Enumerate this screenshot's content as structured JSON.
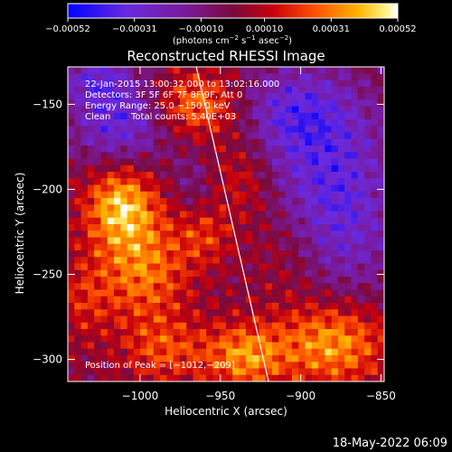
{
  "chart_data": {
    "type": "heatmap",
    "title": "Reconstructed RHESSI Image",
    "xlabel": "Heliocentric X (arcsec)",
    "ylabel": "Heliocentric Y (arcsec)",
    "xlim": [
      -1045,
      -848
    ],
    "ylim": [
      -313,
      -128
    ],
    "x_ticks": [
      {
        "value": -1000,
        "label": "−1000"
      },
      {
        "value": -950,
        "label": "−950"
      },
      {
        "value": -900,
        "label": "−900"
      },
      {
        "value": -850,
        "label": "−850"
      }
    ],
    "y_ticks": [
      {
        "value": -150,
        "label": "−150"
      },
      {
        "value": -200,
        "label": "−200"
      },
      {
        "value": -250,
        "label": "−250"
      },
      {
        "value": -300,
        "label": "−300"
      }
    ],
    "colorbar": {
      "min": -0.00052,
      "max": 0.00052,
      "ticks": [
        {
          "value": -0.00052,
          "label": "−0.00052"
        },
        {
          "value": -0.00031,
          "label": "−0.00031"
        },
        {
          "value": -0.0001,
          "label": "−0.00010"
        },
        {
          "value": 0.0001,
          "label": "0.00010"
        },
        {
          "value": 0.00031,
          "label": "0.00031"
        },
        {
          "value": 0.00052,
          "label": "0.00052"
        }
      ],
      "units_parts": {
        "a": "(photons cm",
        "a_sup": "−2",
        "b": " s",
        "b_sup": "−1",
        "c": " asec",
        "c_sup": "−2",
        "d": ")"
      }
    },
    "annotations": {
      "time_range": "22-Jan-2015 13:00:32.000 to 13:02:16.000",
      "detectors": "Detectors: 3F 5F 6F 7F 8F 9F, Att 0",
      "energy_range": "Energy Range: 25.0 −150.0 keV",
      "method": "Clean",
      "total_counts": "Total counts: 5.40E+03",
      "peak_position": "Position of Peak = [−1012,−209]"
    },
    "limb": [
      [
        -965,
        -128
      ],
      [
        -920,
        -313
      ]
    ],
    "sources": [
      {
        "x": -1012,
        "y": -208,
        "sx": 16,
        "sy": 18,
        "a": 1.2
      },
      {
        "x": -998,
        "y": -248,
        "sx": 20,
        "sy": 22,
        "a": 0.85
      },
      {
        "x": -965,
        "y": -150,
        "sx": 20,
        "sy": 14,
        "a": 0.95
      },
      {
        "x": -880,
        "y": -290,
        "sx": 24,
        "sy": 18,
        "a": 1.1
      },
      {
        "x": -935,
        "y": -298,
        "sx": 18,
        "sy": 14,
        "a": 0.95
      },
      {
        "x": -985,
        "y": -295,
        "sx": 18,
        "sy": 14,
        "a": 0.6
      },
      {
        "x": -905,
        "y": -238,
        "sx": 18,
        "sy": 22,
        "a": 0.45
      },
      {
        "x": -935,
        "y": -192,
        "sx": 14,
        "sy": 20,
        "a": 0.45
      },
      {
        "x": -960,
        "y": -228,
        "sx": 12,
        "sy": 12,
        "a": 0.5
      },
      {
        "x": -1035,
        "y": -265,
        "sx": 12,
        "sy": 18,
        "a": 0.4
      }
    ],
    "negative_regions": [
      {
        "x": -1012,
        "y": -160,
        "sx": 22,
        "sy": 22,
        "a": 0.95
      },
      {
        "x": -880,
        "y": -210,
        "sx": 28,
        "sy": 40,
        "a": 1.0
      },
      {
        "x": -905,
        "y": -155,
        "sx": 28,
        "sy": 20,
        "a": 0.8
      },
      {
        "x": -1030,
        "y": -135,
        "sx": 14,
        "sy": 10,
        "a": 0.6
      },
      {
        "x": -968,
        "y": -195,
        "sx": 8,
        "sy": 12,
        "a": 0.3
      }
    ]
  },
  "footer": {
    "date_stamp": "18-May-2022 06:09"
  }
}
